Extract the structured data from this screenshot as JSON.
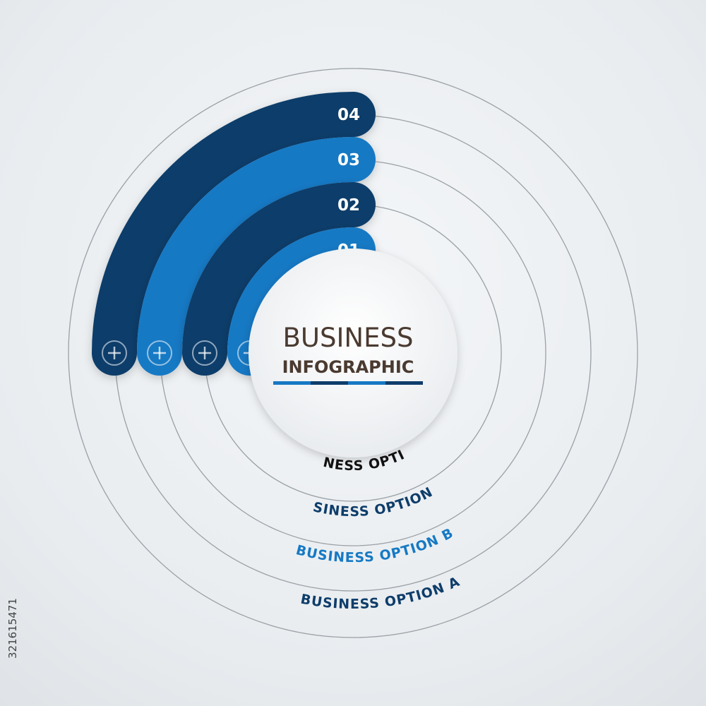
{
  "title": {
    "line1": "BUSINESS",
    "line2": "INFOGRAPHIC"
  },
  "colors": {
    "dark": "#0e3d6a",
    "light": "#1679c4",
    "ring": "#9aa0a6",
    "title": "#4a3a30"
  },
  "bands": [
    {
      "number": "01",
      "label": "BUSINESS OPTION D",
      "color": "#1679c4",
      "icon": "plus-circle-icon"
    },
    {
      "number": "02",
      "label": "BUSINESS OPTION C",
      "color": "#0e3d6a",
      "icon": "plus-circle-icon"
    },
    {
      "number": "03",
      "label": "BUSINESS OPTION B",
      "color": "#1679c4",
      "icon": "plus-circle-icon"
    },
    {
      "number": "04",
      "label": "BUSINESS OPTION A",
      "color": "#0e3d6a",
      "icon": "plus-circle-icon"
    }
  ],
  "label_colors": [
    "#111111",
    "#0e3d6a",
    "#1679c4",
    "#0e3d6a"
  ],
  "stock_id": "321615471"
}
